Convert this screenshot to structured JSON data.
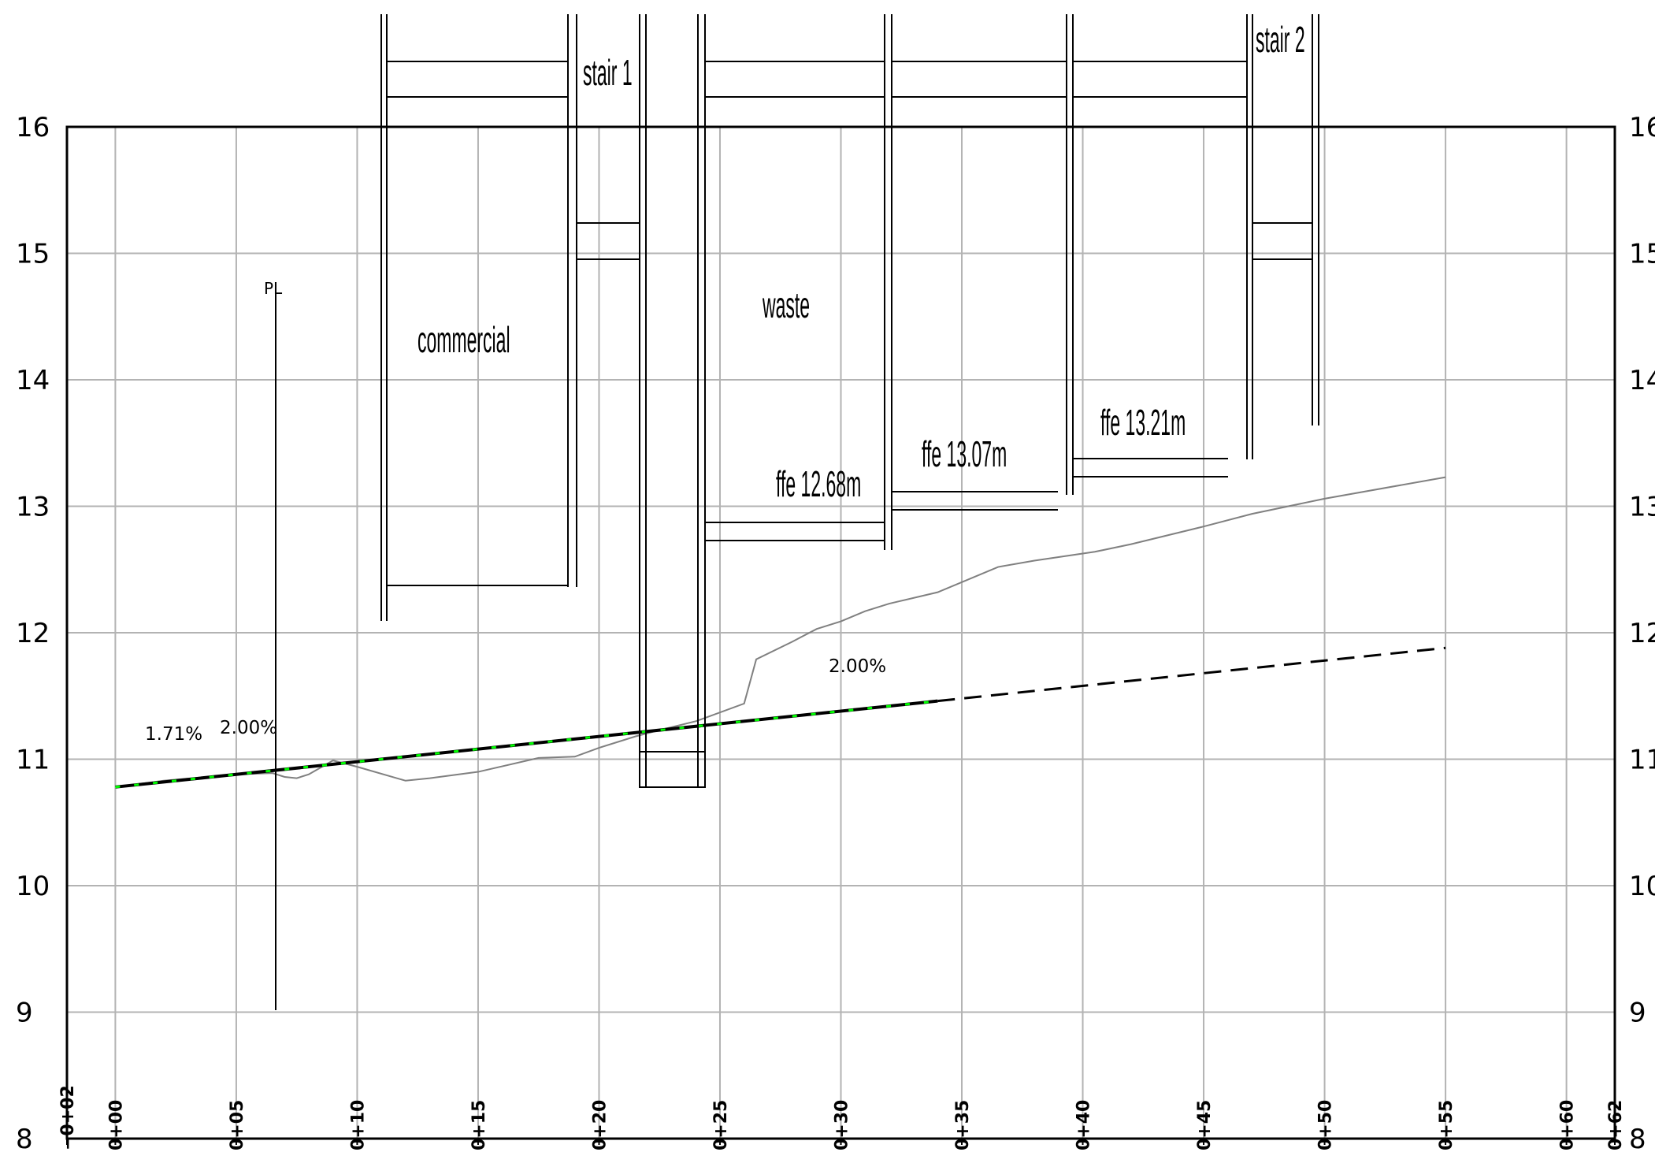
{
  "profile": {
    "y_axis": {
      "min": 8,
      "max": 16,
      "ticks": [
        "8",
        "9",
        "10",
        "11",
        "12",
        "13",
        "14",
        "15",
        "16"
      ]
    },
    "x_axis": {
      "min": -2,
      "max": 62,
      "ticks": [
        {
          "v": -2,
          "label": "−0+02"
        },
        {
          "v": 0,
          "label": "0+00"
        },
        {
          "v": 5,
          "label": "0+05"
        },
        {
          "v": 10,
          "label": "0+10"
        },
        {
          "v": 15,
          "label": "0+15"
        },
        {
          "v": 20,
          "label": "0+20"
        },
        {
          "v": 25,
          "label": "0+25"
        },
        {
          "v": 30,
          "label": "0+30"
        },
        {
          "v": 35,
          "label": "0+35"
        },
        {
          "v": 40,
          "label": "0+40"
        },
        {
          "v": 45,
          "label": "0+45"
        },
        {
          "v": 50,
          "label": "0+50"
        },
        {
          "v": 55,
          "label": "0+55"
        },
        {
          "v": 60,
          "label": "0+60"
        },
        {
          "v": 62,
          "label": "0+62"
        }
      ]
    },
    "labels": {
      "pl": "PL",
      "commercial": "commercial",
      "stair1": "stair 1",
      "stair2": "stair 2",
      "waste": "waste",
      "ffe1": "ffe 12.68m",
      "ffe2": "ffe 13.07m",
      "ffe3": "ffe 13.21m",
      "grade1": "1.71%",
      "grade2": "2.00%",
      "grade3": "2.00%"
    },
    "colors": {
      "grid": "#b3b3b3",
      "existing_ground": "#808080",
      "design": "#000000",
      "highlight": "#00ff00"
    },
    "existing_ground": [
      [
        0,
        10.78
      ],
      [
        2,
        10.83
      ],
      [
        5,
        10.88
      ],
      [
        6.5,
        10.89
      ],
      [
        7,
        10.86
      ],
      [
        7.5,
        10.85
      ],
      [
        8,
        10.88
      ],
      [
        9,
        10.99
      ],
      [
        10,
        10.94
      ],
      [
        12,
        10.83
      ],
      [
        13,
        10.85
      ],
      [
        15,
        10.9
      ],
      [
        17.5,
        11.01
      ],
      [
        19,
        11.02
      ],
      [
        20,
        11.09
      ],
      [
        21.5,
        11.18
      ],
      [
        22.5,
        11.23
      ],
      [
        24,
        11.3
      ],
      [
        26,
        11.44
      ],
      [
        26.5,
        11.79
      ],
      [
        28,
        11.93
      ],
      [
        29,
        12.03
      ],
      [
        30,
        12.09
      ],
      [
        31,
        12.17
      ],
      [
        32,
        12.23
      ],
      [
        34,
        12.32
      ],
      [
        36.5,
        12.52
      ],
      [
        38,
        12.57
      ],
      [
        40.5,
        12.64
      ],
      [
        42,
        12.7
      ],
      [
        45,
        12.84
      ],
      [
        47,
        12.94
      ],
      [
        50,
        13.06
      ],
      [
        55,
        13.23
      ]
    ],
    "design_line": [
      [
        0,
        10.78
      ],
      [
        5,
        10.88
      ],
      [
        34,
        11.46
      ],
      [
        55,
        11.88
      ]
    ]
  }
}
